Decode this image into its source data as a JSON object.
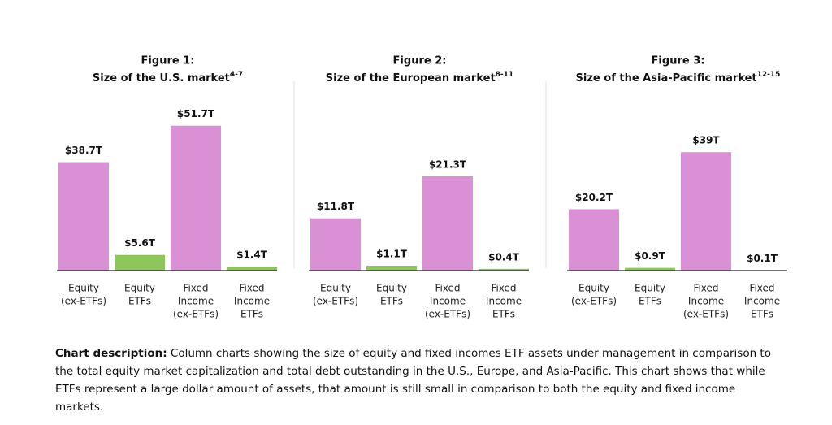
{
  "chart_data": [
    {
      "type": "bar",
      "figure": "Figure 1:",
      "title": "Size of the U.S. market",
      "title_ref": "4-7",
      "categories": [
        [
          "Equity",
          "(ex-ETFs)"
        ],
        [
          "Equity",
          "ETFs"
        ],
        [
          "Fixed",
          "Income",
          "(ex-ETFs)"
        ],
        [
          "Fixed",
          "Income",
          "ETFs"
        ]
      ],
      "values": [
        38.7,
        5.6,
        51.7,
        1.4
      ],
      "value_labels": [
        "$38.7T",
        "$5.6T",
        "$51.7T",
        "$1.4T"
      ],
      "colors": [
        "#da90d5",
        "#8dc75c",
        "#da90d5",
        "#8dc75c"
      ],
      "ylim": [
        0,
        58
      ]
    },
    {
      "type": "bar",
      "figure": "Figure 2:",
      "title": "Size of the European market",
      "title_ref": "8-11",
      "categories": [
        [
          "Equity",
          "(ex-ETFs)"
        ],
        [
          "Equity",
          "ETFs"
        ],
        [
          "Fixed",
          "Income",
          "(ex-ETFs)"
        ],
        [
          "Fixed",
          "Income",
          "ETFs"
        ]
      ],
      "values": [
        11.8,
        1.1,
        21.3,
        0.4
      ],
      "value_labels": [
        "$11.8T",
        "$1.1T",
        "$21.3T",
        "$0.4T"
      ],
      "colors": [
        "#da90d5",
        "#8dc75c",
        "#da90d5",
        "#8dc75c"
      ],
      "ylim": [
        0,
        36.7
      ]
    },
    {
      "type": "bar",
      "figure": "Figure 3:",
      "title": "Size of the Asia-Pacific market",
      "title_ref": "12-15",
      "categories": [
        [
          "Equity",
          "(ex-ETFs)"
        ],
        [
          "Equity",
          "ETFs"
        ],
        [
          "Fixed",
          "Income",
          "(ex-ETFs)"
        ],
        [
          "Fixed",
          "Income",
          "ETFs"
        ]
      ],
      "values": [
        20.2,
        0.9,
        39,
        0.1
      ],
      "value_labels": [
        "$20.2T",
        "$0.9T",
        "$39T",
        "$0.1T"
      ],
      "colors": [
        "#da90d5",
        "#8dc75c",
        "#da90d5",
        "#8dc75c"
      ],
      "ylim": [
        0,
        53.5
      ]
    }
  ],
  "description": {
    "label": "Chart description:",
    "text": " Column charts showing the size of equity and fixed incomes ETF assets under management in comparison to the total equity market capitalization and total debt outstanding in the U.S., Europe, and Asia-Pacific. This chart shows that while ETFs represent a large dollar amount of assets, that amount is still small in comparison to both the equity and fixed income markets."
  }
}
